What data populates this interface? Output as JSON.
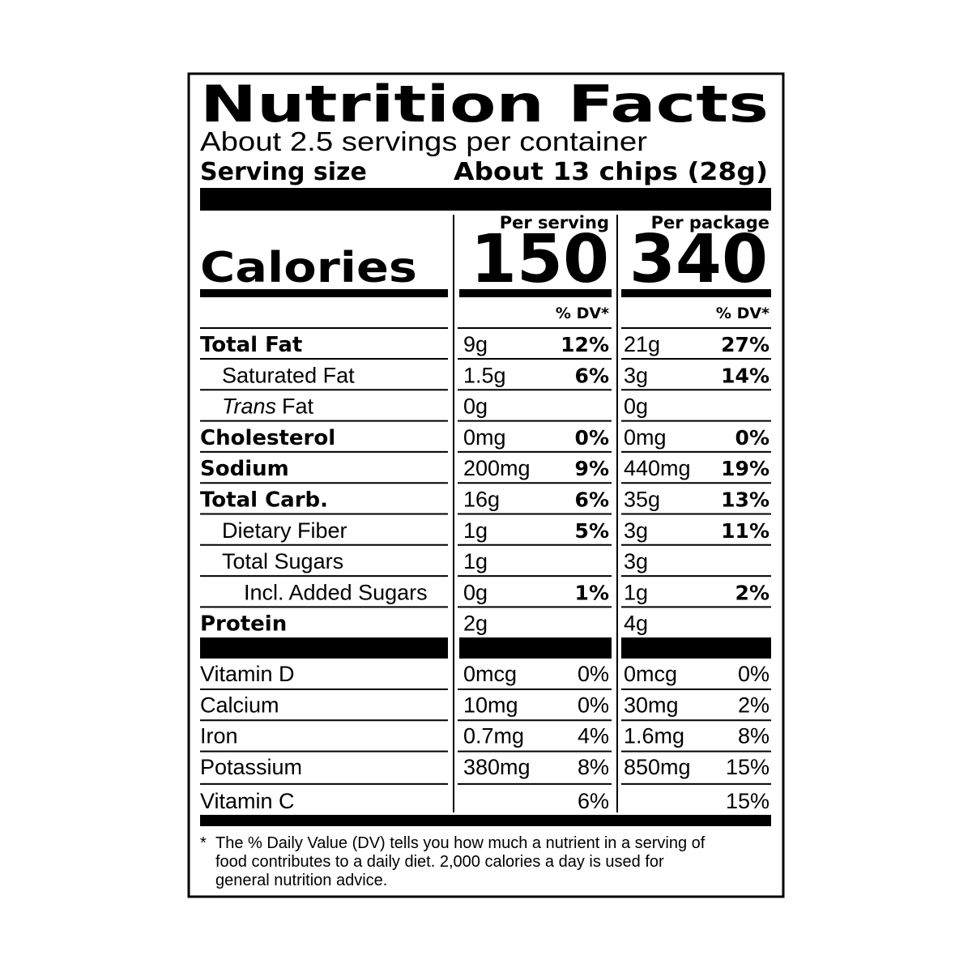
{
  "title": "Nutrition Facts",
  "servings": "About 2.5 servings per container",
  "serving_size": {
    "label": "Serving size",
    "value": "About 13 chips (28g)"
  },
  "columns": [
    "Per serving",
    "Per package"
  ],
  "calories": {
    "label": "Calories",
    "values": [
      "150",
      "340"
    ]
  },
  "dv_header": [
    "% DV*",
    "% DV*"
  ],
  "nutrients": [
    {
      "name": "Total Fat",
      "bold": true,
      "indent": 0,
      "serving": {
        "amount": "9g",
        "dv": "12%"
      },
      "package": {
        "amount": "21g",
        "dv": "27%"
      }
    },
    {
      "name": "Saturated Fat",
      "bold": false,
      "indent": 1,
      "serving": {
        "amount": "1.5g",
        "dv": "6%"
      },
      "package": {
        "amount": "3g",
        "dv": "14%"
      }
    },
    {
      "name_italic": "Trans",
      "name": "Fat",
      "bold": false,
      "indent": 1,
      "serving": {
        "amount": "0g"
      },
      "package": {
        "amount": "0g"
      }
    },
    {
      "name": "Cholesterol",
      "bold": true,
      "indent": 0,
      "serving": {
        "amount": "0mg",
        "dv": "0%"
      },
      "package": {
        "amount": "0mg",
        "dv": "0%"
      }
    },
    {
      "name": "Sodium",
      "bold": true,
      "indent": 0,
      "serving": {
        "amount": "200mg",
        "dv": "9%"
      },
      "package": {
        "amount": "440mg",
        "dv": "19%"
      }
    },
    {
      "name": "Total Carb.",
      "bold": true,
      "indent": 0,
      "serving": {
        "amount": "16g",
        "dv": "6%"
      },
      "package": {
        "amount": "35g",
        "dv": "13%"
      }
    },
    {
      "name": "Dietary Fiber",
      "bold": false,
      "indent": 1,
      "serving": {
        "amount": "1g",
        "dv": "5%"
      },
      "package": {
        "amount": "3g",
        "dv": "11%"
      }
    },
    {
      "name": "Total Sugars",
      "bold": false,
      "indent": 1,
      "serving": {
        "amount": "1g"
      },
      "package": {
        "amount": "3g"
      }
    },
    {
      "name": "Incl. Added Sugars",
      "bold": false,
      "indent": 2,
      "serving": {
        "amount": "0g",
        "dv": "1%"
      },
      "package": {
        "amount": "1g",
        "dv": "2%"
      }
    },
    {
      "name": "Protein",
      "bold": true,
      "indent": 0,
      "serving": {
        "amount": "2g"
      },
      "package": {
        "amount": "4g"
      }
    }
  ],
  "vitamins": [
    {
      "name": "Vitamin D",
      "serving": {
        "amount": "0mcg",
        "dv": "0%"
      },
      "package": {
        "amount": "0mcg",
        "dv": "0%"
      }
    },
    {
      "name": "Calcium",
      "serving": {
        "amount": "10mg",
        "dv": "0%"
      },
      "package": {
        "amount": "30mg",
        "dv": "2%"
      }
    },
    {
      "name": "Iron",
      "serving": {
        "amount": "0.7mg",
        "dv": "4%"
      },
      "package": {
        "amount": "1.6mg",
        "dv": "8%"
      }
    },
    {
      "name": "Potassium",
      "serving": {
        "amount": "380mg",
        "dv": "8%"
      },
      "package": {
        "amount": "850mg",
        "dv": "15%"
      }
    },
    {
      "name": "Vitamin C",
      "serving": {
        "dv": "6%"
      },
      "package": {
        "dv": "15%"
      }
    }
  ],
  "footnote": {
    "mark": "*",
    "lines": [
      "The % Daily Value (DV) tells you how much a nutrient in a serving of",
      "food contributes to a daily diet. 2,000 calories a day is used for",
      "general nutrition advice."
    ]
  }
}
